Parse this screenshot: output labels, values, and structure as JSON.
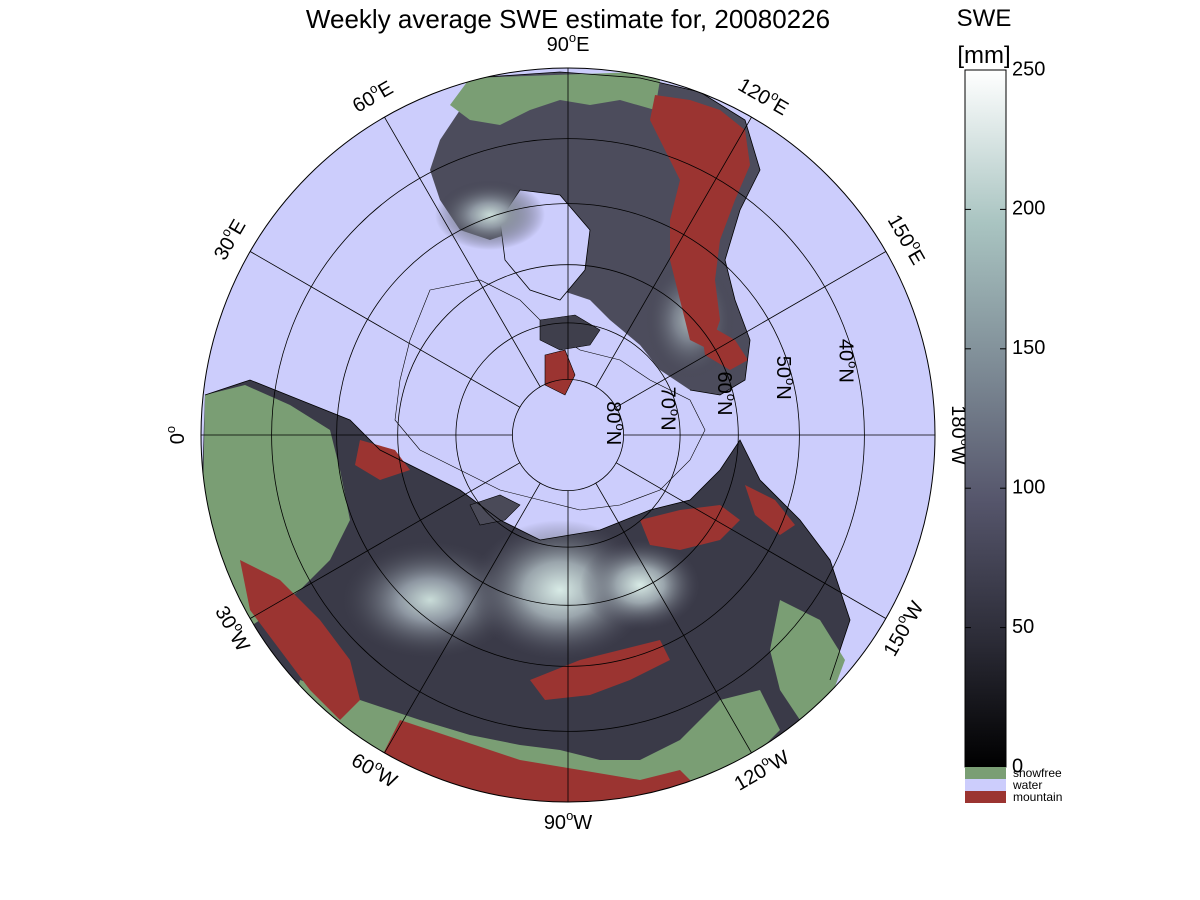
{
  "title": "Weekly average SWE estimate for, 20080226",
  "colorbar": {
    "label_line1": "SWE",
    "label_line2": "[mm]",
    "ticks": [
      "0",
      "50",
      "100",
      "150",
      "200",
      "250"
    ],
    "range": [
      0,
      250
    ],
    "legend": [
      {
        "label": "snowfree",
        "color": "#7a9e74"
      },
      {
        "label": "water",
        "color": "#cccdfc"
      },
      {
        "label": "mountain",
        "color": "#9b3431"
      }
    ]
  },
  "map": {
    "projection": "north polar stereographic",
    "colors": {
      "water": "#cccdfc",
      "snowfree": "#7a9e74",
      "mountain": "#9b3431",
      "coastline": "#000000",
      "grid": "#000000"
    },
    "longitude_labels": [
      {
        "text": "90",
        "unit": "oW",
        "lon": -90
      },
      {
        "text": "120",
        "unit": "oW",
        "lon": -120
      },
      {
        "text": "150",
        "unit": "oW",
        "lon": -150
      },
      {
        "text": "180",
        "unit": "oW",
        "lon": 180
      },
      {
        "text": "150",
        "unit": "oE",
        "lon": 150
      },
      {
        "text": "120",
        "unit": "oE",
        "lon": 120
      },
      {
        "text": "90",
        "unit": "oE",
        "lon": 90
      },
      {
        "text": "60",
        "unit": "oE",
        "lon": 60
      },
      {
        "text": "30",
        "unit": "oE",
        "lon": 30
      },
      {
        "text": "0",
        "unit": "o",
        "lon": 0
      },
      {
        "text": "30",
        "unit": "oW",
        "lon": -30
      },
      {
        "text": "60",
        "unit": "oW",
        "lon": -60
      }
    ],
    "latitude_labels": [
      {
        "text": "80",
        "unit": "oN",
        "lat": 80
      },
      {
        "text": "70",
        "unit": "oN",
        "lat": 70
      },
      {
        "text": "60",
        "unit": "oN",
        "lat": 60
      },
      {
        "text": "50",
        "unit": "oN",
        "lat": 50
      },
      {
        "text": "40",
        "unit": "oN",
        "lat": 40
      }
    ]
  }
}
